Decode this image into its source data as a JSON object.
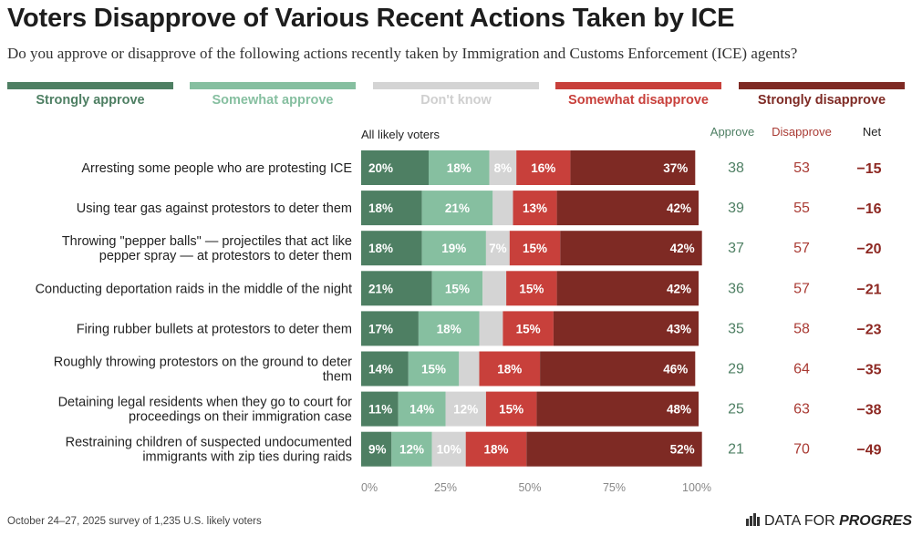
{
  "title": "Voters Disapprove of Various Recent Actions Taken by ICE",
  "subtitle": "Do you approve or disapprove of the following actions recently taken by Immigration and Customs Enforcement (ICE) agents?",
  "legend": [
    {
      "label": "Strongly approve",
      "color": "#4e7f63"
    },
    {
      "label": "Somewhat approve",
      "color": "#86bfa0"
    },
    {
      "label": "Don't know",
      "color": "#d4d4d4"
    },
    {
      "label": "Somewhat disapprove",
      "color": "#c8403b"
    },
    {
      "label": "Strongly disapprove",
      "color": "#7e2a24"
    }
  ],
  "colors": {
    "approve_text": "#4e7f63",
    "disapprove_text": "#a93a33",
    "net_text": "#8d2822"
  },
  "columns": {
    "approve": "Approve",
    "disapprove": "Disapprove",
    "net": "Net"
  },
  "chart_header": "All likely voters",
  "footer": "October 24–27, 2025 survey of 1,235 U.S. likely voters",
  "brand": {
    "prefix": "DATA FOR ",
    "emphasis": "PROGRESS"
  },
  "chart_data": {
    "type": "bar",
    "orientation": "horizontal",
    "stacked": true,
    "xlim": [
      0,
      100
    ],
    "x_ticks": [
      "0%",
      "25%",
      "50%",
      "75%",
      "100%"
    ],
    "categories": [
      "Arresting some people who are protesting ICE",
      "Using tear gas against protestors to deter them",
      "Throwing \"pepper balls\" — projectiles that act like pepper spray — at protestors to deter them",
      "Conducting deportation raids in the middle of the night",
      "Firing rubber bullets at protestors to deter them",
      "Roughly throwing protestors on the ground to deter them",
      "Detaining legal residents when they go to court for proceedings on their immigration case",
      "Restraining children of suspected undocumented immigrants with zip ties during raids"
    ],
    "category_lines": [
      [
        "Arresting some people who are protesting ICE"
      ],
      [
        "Using tear gas against protestors to deter them"
      ],
      [
        "Throwing \"pepper balls\" — projectiles that act like",
        "pepper spray — at protestors to deter them"
      ],
      [
        "Conducting deportation raids in the middle of the night"
      ],
      [
        "Firing rubber bullets at protestors to deter them"
      ],
      [
        "Roughly throwing protestors on the ground to deter",
        "them"
      ],
      [
        "Detaining legal residents when they go to court for",
        "proceedings on their immigration case"
      ],
      [
        "Restraining children of suspected undocumented",
        "immigrants with zip ties during raids"
      ]
    ],
    "series": [
      {
        "name": "Strongly approve",
        "values": [
          20,
          18,
          18,
          21,
          17,
          14,
          11,
          9
        ]
      },
      {
        "name": "Somewhat approve",
        "values": [
          18,
          21,
          19,
          15,
          18,
          15,
          14,
          12
        ]
      },
      {
        "name": "Don't know",
        "values": [
          8,
          6,
          7,
          7,
          7,
          6,
          12,
          10
        ]
      },
      {
        "name": "Somewhat disapprove",
        "values": [
          16,
          13,
          15,
          15,
          15,
          18,
          15,
          18
        ]
      },
      {
        "name": "Strongly disapprove",
        "values": [
          37,
          42,
          42,
          42,
          43,
          46,
          48,
          52
        ]
      }
    ],
    "show_label": [
      [
        true,
        true,
        true,
        true,
        true,
        true,
        true,
        true
      ],
      [
        true,
        true,
        true,
        true,
        true,
        true,
        true,
        true
      ],
      [
        true,
        false,
        true,
        false,
        false,
        false,
        true,
        true
      ],
      [
        true,
        true,
        true,
        true,
        true,
        true,
        true,
        true
      ],
      [
        true,
        true,
        true,
        true,
        true,
        true,
        true,
        true
      ]
    ],
    "approve": [
      38,
      39,
      37,
      36,
      35,
      29,
      25,
      21
    ],
    "disapprove": [
      53,
      55,
      57,
      57,
      58,
      64,
      63,
      70
    ],
    "net": [
      "−15",
      "−16",
      "−20",
      "−21",
      "−23",
      "−35",
      "−38",
      "−49"
    ]
  }
}
